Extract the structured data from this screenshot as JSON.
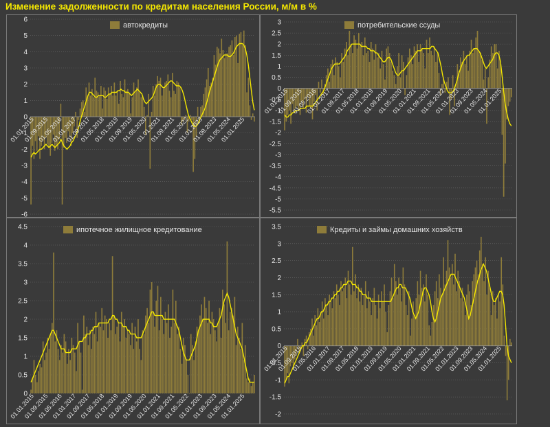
{
  "page_title": "Изменение задолженности по кредитам населения России, м/м в %",
  "colors": {
    "bar": "#8e7c3a",
    "line": "#f5e800",
    "background": "#3a3a3a",
    "grid": "#6e6e6e"
  },
  "chart_data": [
    {
      "type": "bar",
      "legend": "автокредиты",
      "ylim": [
        -6,
        6
      ],
      "yticks": [
        -6,
        -5,
        -4,
        -3,
        -2,
        -1,
        0,
        1,
        2,
        3,
        4,
        5,
        6
      ],
      "xticks": [
        "01.01.2015",
        "01.09.2015",
        "01.05.2016",
        "01.01.2017",
        "01.09.2017",
        "01.05.2018",
        "01.01.2019",
        "01.09.2019",
        "01.05.2020",
        "01.01.2021",
        "01.09.2021",
        "01.05.2022",
        "01.01.2023",
        "01.09.2023",
        "01.05.2024",
        "01.01.2025"
      ],
      "values": [
        -5.4,
        -1.8,
        -2.6,
        -1.5,
        -2.1,
        -1.2,
        -2.6,
        -1.8,
        -1.5,
        -2.0,
        -1.3,
        -1.7,
        -1.9,
        -2.4,
        -1.6,
        -1.1,
        -2.1,
        -1.8,
        -2.0,
        -1.4,
        0.8,
        -5.4,
        -1.9,
        -1.3,
        -1.6,
        -0.9,
        -1.2,
        -1.8,
        -1.0,
        -0.6,
        0.3,
        -1.3,
        -0.2,
        0.5,
        0.9,
        1.0,
        0.3,
        1.8,
        1.2,
        2.1,
        1.3,
        1.7,
        1.2,
        2.4,
        1.6,
        1.5,
        1.3,
        1.9,
        0.5,
        1.8,
        1.6,
        1.1,
        1.8,
        1.4,
        1.9,
        1.3,
        2.1,
        1.3,
        1.6,
        0.8,
        2.2,
        1.4,
        1.2,
        2.3,
        1.6,
        1.7,
        1.4,
        0.2,
        1.2,
        2.1,
        1.5,
        1.8,
        2.3,
        1.5,
        1.2,
        1.3,
        0.6,
        -1.1,
        0.1,
        1.4,
        -3.2,
        0.3,
        1.9,
        1.3,
        2.0,
        2.5,
        2.2,
        2.4,
        1.3,
        1.8,
        2.1,
        2.2,
        2.6,
        1.6,
        1.2,
        2.7,
        1.6,
        1.4,
        2.2,
        2.1,
        1.8,
        -0.5,
        -0.3,
        -0.2,
        0.1,
        -1.0,
        -0.3,
        0.1,
        -0.2,
        -3.4,
        -2.6,
        -1.2,
        0.6,
        -0.4,
        0.6,
        0.7,
        1.4,
        1.8,
        2.3,
        3.0,
        1.9,
        2.1,
        2.4,
        3.8,
        3.2,
        4.3,
        4.2,
        3.9,
        4.8,
        4.1,
        3.6,
        3.9,
        3.9,
        4.3,
        4.4,
        4.7,
        3.8,
        4.9,
        5.0,
        3.3,
        5.1,
        5.2,
        4.4,
        5.3,
        4.4,
        1.5,
        2.4,
        0.7,
        -0.2,
        0.2,
        -0.3
      ],
      "ma": [
        -2.5,
        -2.3,
        -2.2,
        -2.3,
        -2.2,
        -2.1,
        -2.0,
        -2.0,
        -1.9,
        -1.8,
        -1.7,
        -1.8,
        -1.9,
        -1.8,
        -1.7,
        -1.8,
        -1.9,
        -1.8,
        -1.7,
        -1.6,
        -1.4,
        -1.6,
        -1.8,
        -1.9,
        -2.0,
        -1.9,
        -1.8,
        -1.6,
        -1.5,
        -1.3,
        -1.1,
        -0.9,
        -0.6,
        -0.2,
        0.1,
        0.4,
        0.7,
        1.0,
        1.3,
        1.5,
        1.5,
        1.4,
        1.3,
        1.2,
        1.2,
        1.3,
        1.3,
        1.3,
        1.3,
        1.2,
        1.2,
        1.3,
        1.4,
        1.4,
        1.5,
        1.5,
        1.5,
        1.5,
        1.6,
        1.6,
        1.7,
        1.6,
        1.6,
        1.5,
        1.5,
        1.5,
        1.4,
        1.3,
        1.4,
        1.5,
        1.6,
        1.7,
        1.6,
        1.5,
        1.4,
        1.1,
        0.9,
        0.8,
        0.9,
        1.0,
        1.1,
        1.2,
        1.4,
        1.7,
        1.9,
        2.0,
        2.0,
        1.9,
        1.8,
        1.8,
        1.9,
        2.0,
        2.1,
        2.2,
        2.2,
        2.1,
        2.0,
        1.9,
        1.9,
        1.9,
        1.8,
        1.6,
        1.3,
        0.9,
        0.5,
        0.1,
        -0.1,
        -0.3,
        -0.5,
        -0.6,
        -0.6,
        -0.5,
        -0.3,
        -0.1,
        0.1,
        0.3,
        0.5,
        0.8,
        1.1,
        1.5,
        1.8,
        2.1,
        2.4,
        2.7,
        3.0,
        3.3,
        3.5,
        3.6,
        3.7,
        3.8,
        3.8,
        3.8,
        3.7,
        3.7,
        3.8,
        3.9,
        4.1,
        4.3,
        4.4,
        4.5,
        4.5,
        4.5,
        4.4,
        4.2,
        3.8,
        3.2,
        2.4,
        1.6,
        0.9,
        0.4
      ]
    },
    {
      "type": "bar",
      "legend": "потребительские ссуды",
      "ylim": [
        -5.5,
        3
      ],
      "yticks": [
        -5.5,
        -5,
        -4.5,
        -4,
        -3.5,
        -3,
        -2.5,
        -2,
        -1.5,
        -1,
        -0.5,
        0,
        0.5,
        1,
        1.5,
        2,
        2.5,
        3
      ],
      "xticks": [
        "01.01.2015",
        "01.09.2015",
        "01.05.2016",
        "01.01.2017",
        "01.09.2017",
        "01.05.2018",
        "01.01.2019",
        "01.09.2019",
        "01.05.2020",
        "01.01.2021",
        "01.09.2021",
        "01.05.2022",
        "01.01.2023",
        "01.09.2023",
        "01.05.2024",
        "01.01.2025"
      ],
      "values": [
        -1.9,
        -1.5,
        -1.2,
        -1.0,
        -1.6,
        -0.7,
        -1.1,
        -0.9,
        -0.8,
        -1.0,
        -1.2,
        -0.6,
        -0.9,
        -0.5,
        -1.1,
        -0.4,
        -0.8,
        -0.9,
        -1.4,
        -0.6,
        -0.3,
        -1.0,
        0.3,
        -0.2,
        0.4,
        -0.3,
        0.2,
        0.6,
        0.9,
        0.3,
        1.1,
        1.3,
        0.6,
        1.4,
        1.2,
        1.0,
        0.5,
        1.6,
        1.2,
        1.8,
        2.1,
        1.5,
        2.6,
        2.0,
        1.6,
        2.4,
        2.2,
        1.8,
        2.5,
        1.9,
        2.1,
        1.5,
        2.3,
        1.6,
        1.7,
        1.2,
        2.1,
        1.8,
        1.3,
        2.0,
        1.4,
        1.6,
        0.9,
        1.7,
        1.1,
        0.4,
        1.8,
        1.9,
        1.6,
        1.2,
        0.8,
        0.6,
        0.2,
        1.0,
        1.6,
        0.5,
        1.5,
        1.2,
        -0.3,
        0.6,
        1.4,
        1.8,
        1.5,
        1.1,
        1.9,
        1.7,
        2.0,
        1.2,
        2.0,
        1.8,
        1.6,
        0.9,
        2.2,
        1.6,
        2.3,
        1.7,
        1.5,
        1.9,
        1.2,
        1.6,
        0.7,
        -0.3,
        0.2,
        0.4,
        -0.2,
        0.3,
        0.5,
        -1.2,
        -0.5,
        0.6,
        -0.8,
        0.2,
        1.1,
        0.8,
        1.4,
        1.2,
        1.7,
        1.1,
        1.5,
        0.8,
        1.7,
        2.2,
        1.6,
        1.8,
        2.3,
        2.6,
        1.7,
        1.6,
        1.3,
        0.4,
        0.9,
        -1.6,
        0.5,
        1.3,
        1.9,
        1.6,
        2.0,
        2.0,
        0.9,
        1.7,
        1.1,
        -2.1,
        -4.9,
        -3.4,
        -1.4,
        -0.8,
        -0.6,
        -0.4
      ],
      "ma": [
        -1.2,
        -1.3,
        -1.3,
        -1.2,
        -1.2,
        -1.1,
        -1.1,
        -1.0,
        -1.0,
        -1.0,
        -0.9,
        -0.9,
        -0.9,
        -0.9,
        -0.8,
        -0.8,
        -0.8,
        -0.8,
        -0.8,
        -0.7,
        -0.6,
        -0.5,
        -0.4,
        -0.3,
        -0.2,
        -0.1,
        0.1,
        0.3,
        0.5,
        0.7,
        0.9,
        1.0,
        1.1,
        1.1,
        1.1,
        1.1,
        1.2,
        1.3,
        1.4,
        1.5,
        1.7,
        1.8,
        1.9,
        2.0,
        2.0,
        2.0,
        2.0,
        2.0,
        2.0,
        1.9,
        1.9,
        1.9,
        1.9,
        1.8,
        1.8,
        1.7,
        1.7,
        1.7,
        1.6,
        1.6,
        1.5,
        1.4,
        1.3,
        1.2,
        1.2,
        1.3,
        1.4,
        1.4,
        1.3,
        1.1,
        0.9,
        0.7,
        0.6,
        0.6,
        0.7,
        0.8,
        0.8,
        0.9,
        1.0,
        1.1,
        1.2,
        1.3,
        1.4,
        1.5,
        1.6,
        1.7,
        1.7,
        1.7,
        1.8,
        1.8,
        1.8,
        1.8,
        1.8,
        1.8,
        1.9,
        1.9,
        1.8,
        1.7,
        1.6,
        1.3,
        1.0,
        0.6,
        0.3,
        0.1,
        -0.1,
        -0.2,
        -0.2,
        -0.2,
        -0.1,
        0.1,
        0.3,
        0.6,
        0.8,
        1.0,
        1.2,
        1.3,
        1.4,
        1.5,
        1.5,
        1.6,
        1.7,
        1.8,
        1.8,
        1.8,
        1.7,
        1.6,
        1.4,
        1.2,
        1.0,
        0.9,
        1.0,
        1.1,
        1.2,
        1.3,
        1.5,
        1.6,
        1.6,
        1.5,
        1.2,
        0.6,
        -0.1,
        -0.7,
        -1.1,
        -1.4,
        -1.6,
        -1.7
      ]
    },
    {
      "type": "bar",
      "legend": "ипотечное жилищное кредитование",
      "ylim": [
        0,
        4.5
      ],
      "yticks": [
        0,
        0.5,
        1,
        1.5,
        2,
        2.5,
        3,
        3.5,
        4,
        4.5
      ],
      "xticks": [
        "01.01.2015",
        "01.09.2015",
        "01.05.2016",
        "01.01.2017",
        "01.09.2017",
        "01.05.2018",
        "01.01.2019",
        "01.09.2019",
        "01.05.2020",
        "01.01.2021",
        "01.09.2021",
        "01.05.2022",
        "01.01.2023",
        "01.09.2023",
        "01.05.2024",
        "01.01.2025"
      ],
      "values": [
        0.1,
        0.4,
        0.9,
        0.5,
        0.3,
        0.6,
        0.8,
        0.7,
        1.4,
        0.9,
        1.1,
        1.5,
        1.2,
        1.6,
        1.9,
        3.8,
        1.4,
        1.7,
        1.2,
        0.9,
        1.3,
        1.1,
        1.6,
        1.4,
        0.8,
        1.2,
        0.9,
        1.5,
        1.3,
        1.1,
        0.6,
        1.9,
        1.4,
        1.1,
        0.1,
        2.1,
        1.6,
        1.8,
        1.3,
        1.7,
        1.2,
        1.8,
        1.6,
        2.2,
        1.4,
        1.9,
        1.8,
        2.3,
        1.7,
        2.1,
        2.0,
        1.5,
        1.9,
        1.7,
        3.7,
        2.1,
        1.6,
        1.8,
        1.9,
        1.4,
        2.2,
        1.8,
        2.0,
        1.5,
        1.7,
        1.6,
        1.3,
        1.9,
        1.2,
        1.8,
        1.4,
        2.0,
        1.2,
        0.9,
        1.7,
        1.6,
        2.1,
        2.3,
        1.9,
        2.8,
        3.0,
        2.2,
        1.8,
        2.5,
        2.9,
        1.7,
        2.6,
        2.0,
        1.6,
        2.2,
        1.9,
        2.4,
        1.5,
        1.8,
        2.8,
        1.9,
        2.5,
        1.6,
        1.8,
        1.2,
        0.8,
        1.5,
        1.3,
        0.9,
        0.5,
        0.0,
        1.6,
        1.3,
        0.9,
        1.4,
        1.8,
        1.7,
        2.1,
        2.4,
        2.0,
        2.6,
        2.3,
        1.9,
        2.5,
        1.6,
        2.2,
        2.0,
        1.7,
        1.4,
        1.9,
        2.3,
        1.5,
        2.8,
        2.4,
        1.9,
        4.1,
        1.7,
        2.2,
        2.3,
        2.1,
        2.6,
        1.3,
        1.8,
        1.5,
        1.2,
        1.9,
        0.9,
        1.3,
        0.4,
        0.3,
        0.4,
        0.2,
        0.3,
        0.5
      ],
      "ma": [
        0.3,
        0.4,
        0.5,
        0.6,
        0.7,
        0.8,
        0.9,
        1.0,
        1.1,
        1.2,
        1.3,
        1.4,
        1.5,
        1.6,
        1.7,
        1.7,
        1.6,
        1.5,
        1.4,
        1.3,
        1.2,
        1.2,
        1.2,
        1.1,
        1.1,
        1.1,
        1.1,
        1.2,
        1.2,
        1.2,
        1.2,
        1.3,
        1.4,
        1.4,
        1.4,
        1.5,
        1.5,
        1.6,
        1.6,
        1.6,
        1.7,
        1.7,
        1.8,
        1.8,
        1.8,
        1.9,
        1.9,
        1.9,
        1.9,
        1.9,
        1.9,
        1.9,
        2.0,
        2.0,
        2.1,
        2.1,
        2.0,
        2.0,
        1.9,
        1.9,
        1.9,
        1.8,
        1.8,
        1.8,
        1.7,
        1.7,
        1.6,
        1.6,
        1.6,
        1.6,
        1.5,
        1.5,
        1.5,
        1.5,
        1.6,
        1.7,
        1.8,
        1.9,
        2.0,
        2.1,
        2.2,
        2.2,
        2.1,
        2.1,
        2.1,
        2.1,
        2.1,
        2.1,
        2.0,
        2.0,
        2.0,
        2.0,
        2.0,
        2.0,
        2.0,
        2.0,
        1.9,
        1.8,
        1.7,
        1.5,
        1.3,
        1.1,
        1.0,
        0.9,
        0.9,
        0.9,
        1.0,
        1.1,
        1.2,
        1.3,
        1.5,
        1.7,
        1.8,
        1.9,
        2.0,
        2.0,
        2.0,
        2.0,
        2.0,
        1.9,
        1.9,
        1.8,
        1.8,
        1.8,
        1.9,
        2.0,
        2.1,
        2.3,
        2.5,
        2.6,
        2.7,
        2.6,
        2.4,
        2.2,
        2.0,
        1.8,
        1.6,
        1.5,
        1.4,
        1.3,
        1.2,
        1.0,
        0.8,
        0.6,
        0.4,
        0.3,
        0.3,
        0.3,
        0.3
      ]
    },
    {
      "type": "bar",
      "legend": "Кредиты и займы домашних хозяйств",
      "ylim": [
        -2,
        3.5
      ],
      "yticks": [
        -2,
        -1.5,
        -1,
        -0.5,
        0,
        0.5,
        1,
        1.5,
        2,
        2.5,
        3,
        3.5
      ],
      "xticks": [
        "01.01.2015",
        "01.09.2015",
        "01.05.2016",
        "01.01.2017",
        "01.09.2017",
        "01.05.2018",
        "01.01.2019",
        "01.09.2019",
        "01.05.2020",
        "01.01.2021",
        "01.09.2021",
        "01.05.2022",
        "01.01.2023",
        "01.09.2023",
        "01.05.2024",
        "01.01.2025"
      ],
      "values": [
        -1.2,
        -1.0,
        -0.8,
        -1.1,
        -0.6,
        -0.5,
        -0.7,
        -0.4,
        -0.3,
        0.2,
        -0.2,
        -0.1,
        0.1,
        -0.3,
        0.2,
        0.3,
        -0.1,
        0.4,
        0.5,
        0.8,
        0.3,
        0.9,
        0.6,
        1.1,
        0.7,
        1.0,
        1.3,
        0.8,
        1.4,
        1.2,
        0.9,
        1.5,
        1.3,
        1.1,
        1.6,
        1.4,
        1.8,
        1.5,
        1.2,
        1.9,
        1.6,
        1.7,
        2.0,
        1.4,
        2.2,
        1.8,
        1.5,
        2.9,
        1.6,
        2.1,
        1.4,
        1.8,
        1.3,
        1.7,
        1.2,
        1.5,
        1.9,
        1.1,
        1.6,
        1.3,
        0.9,
        1.4,
        1.7,
        1.2,
        0.8,
        1.5,
        1.1,
        1.6,
        1.3,
        1.8,
        1.0,
        0.4,
        1.2,
        1.6,
        2.0,
        1.4,
        2.4,
        1.9,
        1.5,
        2.0,
        1.7,
        1.3,
        2.3,
        1.8,
        1.2,
        0.9,
        1.6,
        0.3,
        0.8,
        1.3,
        0.9,
        1.4,
        1.9,
        1.5,
        2.2,
        1.7,
        1.8,
        1.3,
        2.1,
        1.5,
        0.6,
        0.3,
        0.7,
        1.2,
        1.6,
        1.9,
        1.4,
        2.1,
        1.7,
        1.5,
        2.6,
        1.8,
        2.2,
        3.1,
        2.3,
        2.0,
        2.4,
        1.8,
        2.7,
        1.6,
        2.2,
        1.9,
        1.4,
        1.7,
        1.3,
        0.9,
        1.5,
        1.8,
        1.6,
        1.2,
        1.9,
        2.1,
        2.3,
        2.5,
        2.1,
        2.8,
        3.2,
        2.4,
        1.9,
        2.6,
        1.5,
        2.2,
        1.7,
        0.9,
        1.6,
        1.2,
        1.4,
        0.8,
        1.5,
        1.3,
        2.6,
        1.8,
        0.3,
        -0.3,
        -1.6,
        -1.0,
        0.2,
        0.1
      ],
      "ma": [
        -1.1,
        -1.0,
        -0.9,
        -0.9,
        -0.8,
        -0.7,
        -0.6,
        -0.5,
        -0.4,
        -0.3,
        -0.2,
        -0.1,
        0.0,
        0.0,
        0.1,
        0.1,
        0.2,
        0.3,
        0.4,
        0.5,
        0.6,
        0.7,
        0.8,
        0.8,
        0.9,
        1.0,
        1.0,
        1.1,
        1.2,
        1.2,
        1.3,
        1.3,
        1.4,
        1.4,
        1.5,
        1.5,
        1.6,
        1.6,
        1.7,
        1.7,
        1.8,
        1.8,
        1.8,
        1.9,
        1.9,
        1.9,
        1.8,
        1.8,
        1.8,
        1.7,
        1.7,
        1.6,
        1.6,
        1.5,
        1.5,
        1.5,
        1.4,
        1.4,
        1.4,
        1.3,
        1.3,
        1.3,
        1.3,
        1.3,
        1.3,
        1.3,
        1.3,
        1.3,
        1.3,
        1.3,
        1.3,
        1.3,
        1.3,
        1.4,
        1.5,
        1.6,
        1.7,
        1.7,
        1.8,
        1.8,
        1.7,
        1.7,
        1.7,
        1.6,
        1.5,
        1.4,
        1.2,
        1.0,
        0.9,
        0.8,
        0.9,
        1.0,
        1.2,
        1.4,
        1.6,
        1.7,
        1.7,
        1.6,
        1.5,
        1.3,
        1.0,
        0.8,
        0.7,
        0.8,
        1.0,
        1.2,
        1.4,
        1.5,
        1.6,
        1.7,
        1.8,
        1.9,
        2.0,
        2.1,
        2.1,
        2.1,
        2.0,
        1.9,
        1.8,
        1.7,
        1.6,
        1.5,
        1.4,
        1.2,
        1.0,
        0.8,
        0.9,
        1.1,
        1.3,
        1.5,
        1.7,
        1.9,
        2.0,
        2.2,
        2.3,
        2.4,
        2.3,
        2.2,
        2.0,
        1.8,
        1.6,
        1.4,
        1.3,
        1.3,
        1.4,
        1.5,
        1.6,
        1.6,
        1.5,
        1.2,
        0.6,
        0.0,
        -0.3,
        -0.4,
        -0.5
      ]
    }
  ]
}
